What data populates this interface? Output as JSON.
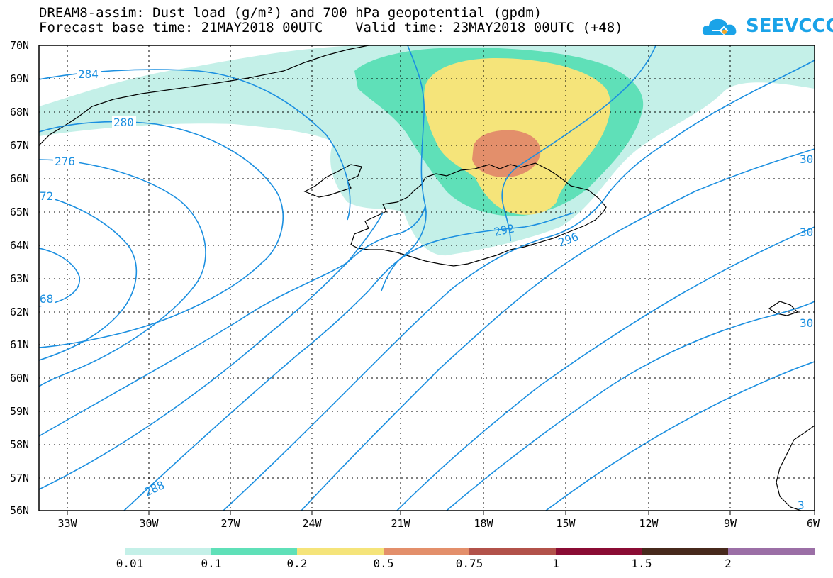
{
  "header": {
    "line1": "DREAM8-assim: Dust load (g/m²) and 700 hPa geopotential (gpdm)",
    "line2": "Forecast base time: 21MAY2018 00UTC    Valid time: 23MAY2018 00UTC (+48)"
  },
  "logo": {
    "text": "SEEVCCC",
    "color": "#1aa3e8"
  },
  "map": {
    "lat_labels": [
      "70N",
      "69N",
      "68N",
      "67N",
      "66N",
      "65N",
      "64N",
      "63N",
      "62N",
      "61N",
      "60N",
      "59N",
      "58N",
      "57N",
      "56N"
    ],
    "lon_labels": [
      "33W",
      "30W",
      "27W",
      "24W",
      "21W",
      "18W",
      "15W",
      "12W",
      "9W",
      "6W"
    ],
    "contour_labels": [
      "284",
      "280",
      "276",
      "72",
      "68",
      "288",
      "292",
      "296",
      "30",
      "30",
      "30",
      "3"
    ],
    "contour_color": "#1b8fe0",
    "coast_color": "#000000"
  },
  "colorbar": {
    "colors": [
      "#c4f0e8",
      "#5fe0b8",
      "#f5e47a",
      "#e38f6b",
      "#b2524a",
      "#8a0c34",
      "#47291c",
      "#9b6fa6"
    ],
    "labels": [
      "0.01",
      "0.1",
      "0.2",
      "0.5",
      "0.75",
      "1",
      "1.5",
      "2"
    ]
  }
}
